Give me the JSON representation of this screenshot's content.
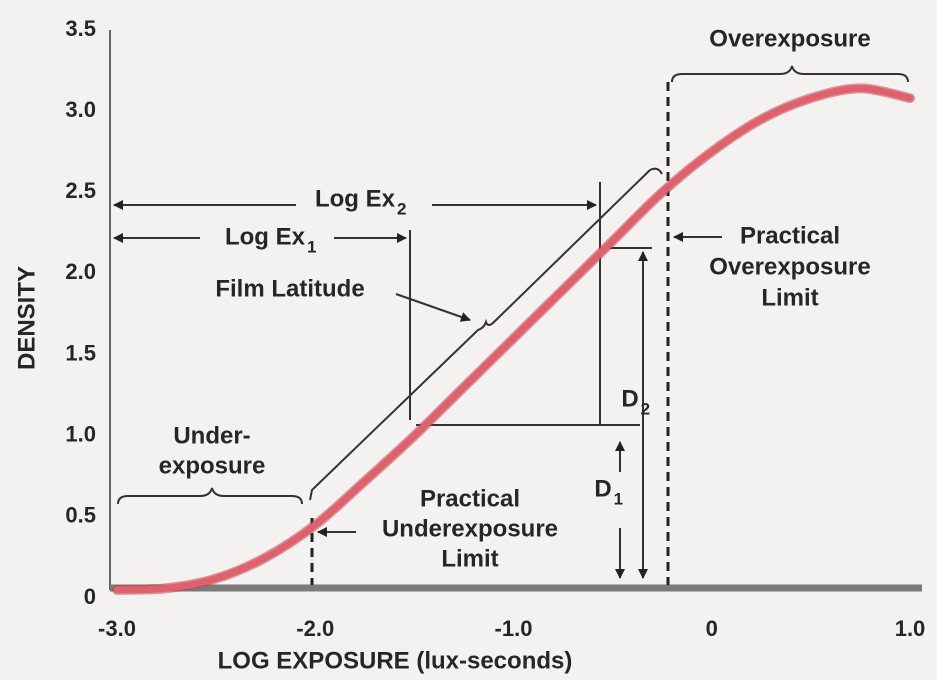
{
  "chart_data": {
    "type": "line",
    "xlabel": "LOG EXPOSURE (lux-seconds)",
    "ylabel": "DENSITY",
    "xlim": [
      -3.0,
      1.0
    ],
    "ylim": [
      0,
      3.5
    ],
    "xticks": [
      {
        "value": -3,
        "label": "-3.0"
      },
      {
        "value": -2,
        "label": "-2.0"
      },
      {
        "value": -1,
        "label": "-1.0"
      },
      0,
      {
        "value": 1,
        "label": "1.0"
      }
    ],
    "yticks": [
      0,
      0.5,
      {
        "value": 1,
        "label": "1.0"
      },
      1.5,
      {
        "value": 2,
        "label": "2.0"
      },
      2.5,
      {
        "value": 3,
        "label": "3.0"
      },
      3.5
    ],
    "grid": false,
    "series": [
      {
        "color": "#e0606c",
        "x": [
          -3.0,
          -2.75,
          -2.5,
          -2.25,
          -2.0,
          -1.75,
          -1.5,
          -1.25,
          -1.0,
          -0.75,
          -0.5,
          -0.25,
          0,
          0.25,
          0.5,
          0.75,
          1.0
        ],
        "values": [
          0.05,
          0.06,
          0.12,
          0.25,
          0.45,
          0.72,
          1.0,
          1.3,
          1.6,
          1.9,
          2.2,
          2.5,
          2.75,
          2.95,
          3.08,
          3.14,
          3.08
        ]
      }
    ],
    "annotations": [
      {
        "text": [
          "Overexposure"
        ]
      },
      {
        "text": [
          "Log Ex"
        ],
        "sub": "2"
      },
      {
        "text": [
          "Log Ex"
        ],
        "sub": "1"
      },
      {
        "text": [
          "Film Latitude"
        ]
      },
      {
        "text": [
          "Practical",
          "Overexposure",
          "Limit"
        ]
      },
      {
        "text": [
          "Under-",
          "exposure"
        ]
      },
      {
        "text": [
          "Practical",
          "Underexposure",
          "Limit"
        ]
      },
      {
        "text": [
          "D"
        ],
        "sub": "2"
      },
      {
        "text": [
          "D"
        ],
        "sub": "1"
      }
    ]
  }
}
